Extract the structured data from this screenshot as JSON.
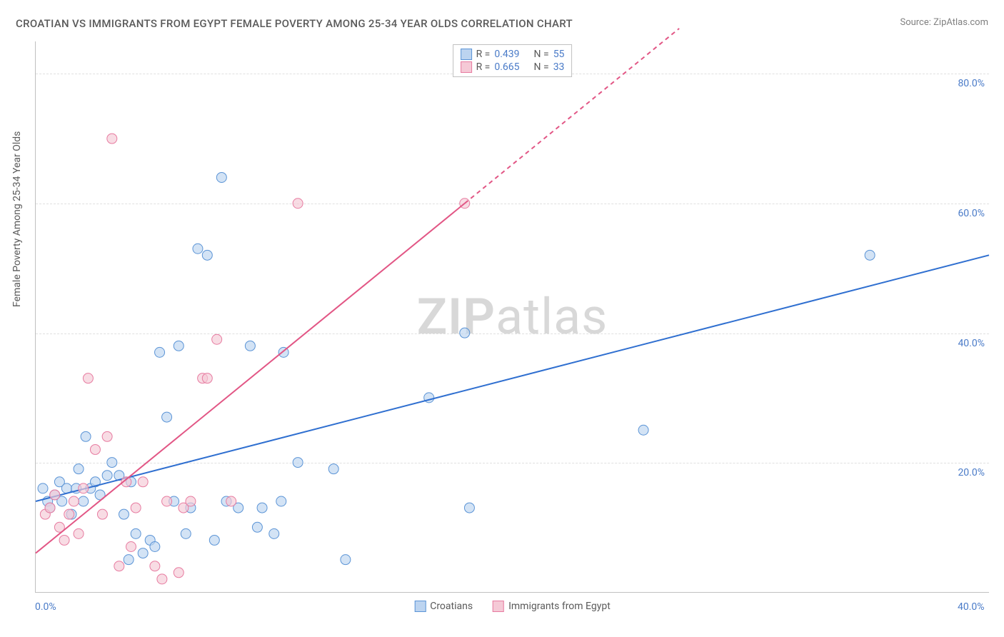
{
  "title": "CROATIAN VS IMMIGRANTS FROM EGYPT FEMALE POVERTY AMONG 25-34 YEAR OLDS CORRELATION CHART",
  "source": "Source: ZipAtlas.com",
  "y_axis_label": "Female Poverty Among 25-34 Year Olds",
  "watermark_a": "ZIP",
  "watermark_b": "atlas",
  "chart": {
    "type": "scatter",
    "xlim": [
      0,
      40
    ],
    "ylim": [
      0,
      85
    ],
    "x_ticks": [
      {
        "v": 0,
        "label": "0.0%"
      },
      {
        "v": 40,
        "label": "40.0%"
      }
    ],
    "y_ticks": [
      {
        "v": 20,
        "label": "20.0%"
      },
      {
        "v": 40,
        "label": "40.0%"
      },
      {
        "v": 60,
        "label": "60.0%"
      },
      {
        "v": 80,
        "label": "80.0%"
      }
    ],
    "grid_color": "#e0e0e0",
    "background_color": "#ffffff",
    "axis_color": "#c0c0c0",
    "tick_label_color": "#4a7bc8",
    "label_fontsize": 14,
    "series": [
      {
        "name": "Croatians",
        "color_fill": "#bcd4f0",
        "color_stroke": "#5b94d6",
        "R": "0.439",
        "N": "55",
        "marker_radius": 7,
        "marker_opacity": 0.65,
        "trend": {
          "x1": 0,
          "y1": 14,
          "x2": 40,
          "y2": 52,
          "dash_after_x": 40,
          "color": "#2f6fd0",
          "width": 2
        },
        "points": [
          [
            0.3,
            16
          ],
          [
            0.5,
            14
          ],
          [
            0.6,
            13
          ],
          [
            0.8,
            15
          ],
          [
            1.0,
            17
          ],
          [
            1.1,
            14
          ],
          [
            1.3,
            16
          ],
          [
            1.5,
            12
          ],
          [
            1.7,
            16
          ],
          [
            1.8,
            19
          ],
          [
            2.0,
            14
          ],
          [
            2.1,
            24
          ],
          [
            2.3,
            16
          ],
          [
            2.5,
            17
          ],
          [
            2.7,
            15
          ],
          [
            3.0,
            18
          ],
          [
            3.2,
            20
          ],
          [
            3.5,
            18
          ],
          [
            3.7,
            12
          ],
          [
            3.9,
            5
          ],
          [
            4.0,
            17
          ],
          [
            4.2,
            9
          ],
          [
            4.5,
            6
          ],
          [
            4.8,
            8
          ],
          [
            5.0,
            7
          ],
          [
            5.2,
            37
          ],
          [
            5.5,
            27
          ],
          [
            5.8,
            14
          ],
          [
            6.0,
            38
          ],
          [
            6.3,
            9
          ],
          [
            6.5,
            13
          ],
          [
            6.8,
            53
          ],
          [
            7.2,
            52
          ],
          [
            7.5,
            8
          ],
          [
            7.8,
            64
          ],
          [
            8.0,
            14
          ],
          [
            8.5,
            13
          ],
          [
            9.0,
            38
          ],
          [
            9.3,
            10
          ],
          [
            9.5,
            13
          ],
          [
            10.0,
            9
          ],
          [
            10.3,
            14
          ],
          [
            10.4,
            37
          ],
          [
            11.0,
            20
          ],
          [
            12.5,
            19
          ],
          [
            13.0,
            5
          ],
          [
            16.5,
            30
          ],
          [
            18.0,
            40
          ],
          [
            18.2,
            13
          ],
          [
            25.5,
            25
          ],
          [
            35.0,
            52
          ]
        ]
      },
      {
        "name": "Immigrants from Egypt",
        "color_fill": "#f5c9d6",
        "color_stroke": "#e77ba0",
        "R": "0.665",
        "N": "33",
        "marker_radius": 7,
        "marker_opacity": 0.65,
        "trend": {
          "x1": 0,
          "y1": 6,
          "x2": 18,
          "y2": 60,
          "dash_after_x": 18,
          "dash_x2": 27,
          "dash_y2": 87,
          "color": "#e25685",
          "width": 2
        },
        "points": [
          [
            0.4,
            12
          ],
          [
            0.6,
            13
          ],
          [
            0.8,
            15
          ],
          [
            1.0,
            10
          ],
          [
            1.2,
            8
          ],
          [
            1.4,
            12
          ],
          [
            1.6,
            14
          ],
          [
            1.8,
            9
          ],
          [
            2.0,
            16
          ],
          [
            2.2,
            33
          ],
          [
            2.5,
            22
          ],
          [
            2.8,
            12
          ],
          [
            3.0,
            24
          ],
          [
            3.2,
            70
          ],
          [
            3.5,
            4
          ],
          [
            3.8,
            17
          ],
          [
            4.0,
            7
          ],
          [
            4.2,
            13
          ],
          [
            4.5,
            17
          ],
          [
            5.0,
            4
          ],
          [
            5.3,
            2
          ],
          [
            5.5,
            14
          ],
          [
            6.0,
            3
          ],
          [
            6.2,
            13
          ],
          [
            6.5,
            14
          ],
          [
            7.0,
            33
          ],
          [
            7.2,
            33
          ],
          [
            7.6,
            39
          ],
          [
            8.2,
            14
          ],
          [
            11.0,
            60
          ],
          [
            18.0,
            60
          ]
        ]
      }
    ]
  },
  "legend_bottom": {
    "items": [
      {
        "label": "Croatians",
        "fill": "#bcd4f0",
        "stroke": "#5b94d6"
      },
      {
        "label": "Immigrants from Egypt",
        "fill": "#f5c9d6",
        "stroke": "#e77ba0"
      }
    ]
  },
  "stats_legend": {
    "R_label": "R =",
    "N_label": "N ="
  }
}
